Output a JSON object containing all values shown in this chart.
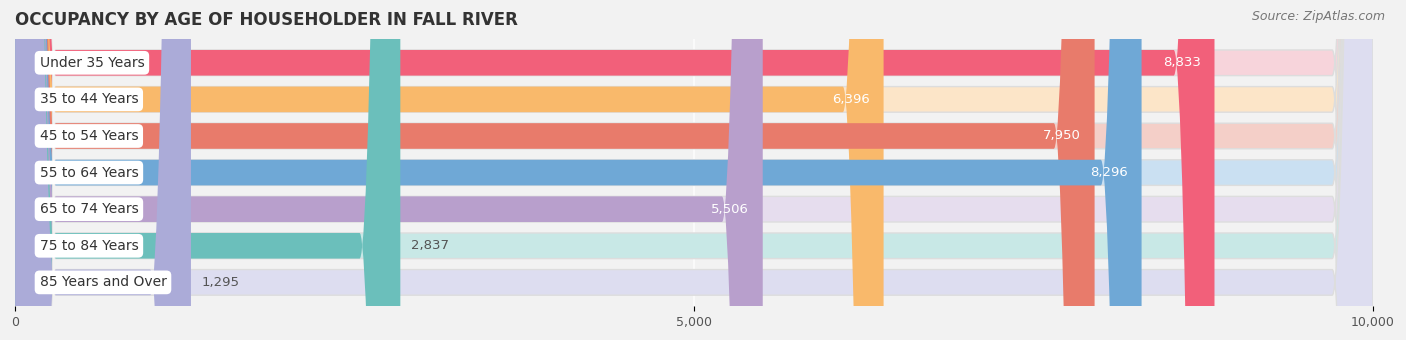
{
  "title": "OCCUPANCY BY AGE OF HOUSEHOLDER IN FALL RIVER",
  "source": "Source: ZipAtlas.com",
  "categories": [
    "Under 35 Years",
    "35 to 44 Years",
    "45 to 54 Years",
    "55 to 64 Years",
    "65 to 74 Years",
    "75 to 84 Years",
    "85 Years and Over"
  ],
  "values": [
    8833,
    6396,
    7950,
    8296,
    5506,
    2837,
    1295
  ],
  "bar_colors": [
    "#F2607A",
    "#F9B96B",
    "#E87B6B",
    "#6FA8D6",
    "#B89FCC",
    "#6BBFBB",
    "#ABABD8"
  ],
  "bar_bg_colors": [
    "#F7D4DB",
    "#FCE5C8",
    "#F4CFC8",
    "#CAE0F2",
    "#E6DDEE",
    "#C8E8E6",
    "#DDDDF0"
  ],
  "bg_border_color": "#DDDDDD",
  "xlim": [
    0,
    10000
  ],
  "xticks": [
    0,
    5000,
    10000
  ],
  "title_fontsize": 12,
  "source_fontsize": 9,
  "label_fontsize": 10,
  "value_fontsize": 9.5,
  "background_color": "#F2F2F2"
}
